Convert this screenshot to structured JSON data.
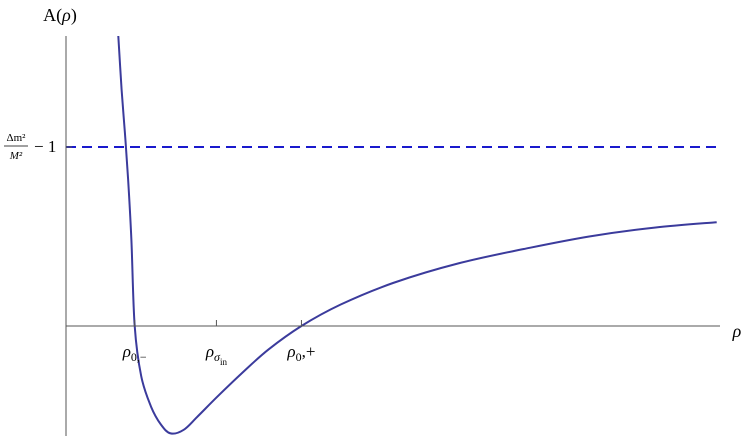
{
  "chart_data": {
    "type": "line",
    "title": "",
    "xlabel": "ρ",
    "ylabel": "A(ρ)",
    "xlim": [
      0,
      10
    ],
    "ylim": [
      -0.62,
      1.62
    ],
    "grid": false,
    "legend": "none",
    "x_ticks": [
      {
        "x": 1.05,
        "label_main": "ρ",
        "label_sub": "0,−",
        "label_subsub": ""
      },
      {
        "x": 2.3,
        "label_main": "ρ",
        "label_sub": "σ",
        "label_subsub": "in"
      },
      {
        "x": 3.6,
        "label_main": "ρ",
        "label_sub": "0",
        "label_subsub": "",
        "label_tail": ",+"
      }
    ],
    "y_ticks": [
      {
        "y": 1.0,
        "label_num": "Δm²",
        "label_den": "M²",
        "label_tail": "− 1"
      }
    ],
    "series": [
      {
        "style": "solid",
        "color": "#3b3b9c",
        "points": [
          [
            0.8,
            1.62
          ],
          [
            0.85,
            1.32
          ],
          [
            0.9,
            1.08
          ],
          [
            0.95,
            0.82
          ],
          [
            1.0,
            0.48
          ],
          [
            1.05,
            0.0
          ],
          [
            1.15,
            -0.28
          ],
          [
            1.3,
            -0.45
          ],
          [
            1.45,
            -0.55
          ],
          [
            1.6,
            -0.6
          ],
          [
            1.8,
            -0.58
          ],
          [
            2.0,
            -0.51
          ],
          [
            2.3,
            -0.4
          ],
          [
            2.7,
            -0.26
          ],
          [
            3.1,
            -0.13
          ],
          [
            3.6,
            0.0
          ],
          [
            4.2,
            0.12
          ],
          [
            5.0,
            0.24
          ],
          [
            6.0,
            0.35
          ],
          [
            7.0,
            0.43
          ],
          [
            8.0,
            0.5
          ],
          [
            9.0,
            0.55
          ],
          [
            9.95,
            0.58
          ]
        ]
      },
      {
        "style": "dashed",
        "color": "#1a1acd",
        "points": [
          [
            0.0,
            1.0
          ],
          [
            9.95,
            1.0
          ]
        ]
      }
    ]
  }
}
